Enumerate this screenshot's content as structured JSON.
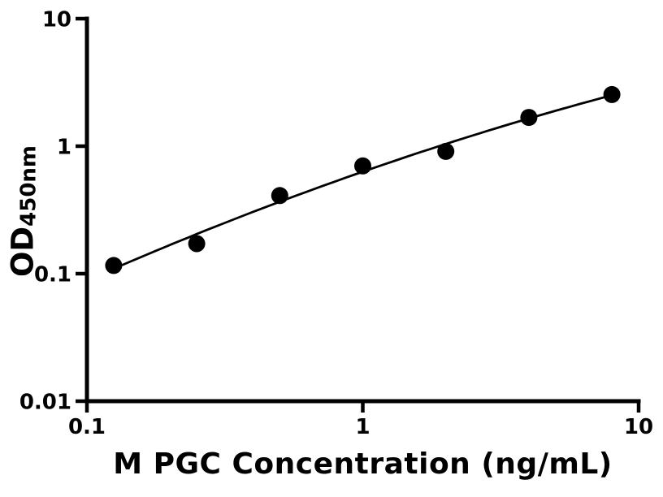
{
  "figure": {
    "background": "#ffffff",
    "foreground": "#000000"
  },
  "chart_data": {
    "type": "scatter",
    "title": "",
    "xlabel": "M PGC Concentration (ng/mL)",
    "ylabel_main": "OD",
    "ylabel_sub": "450nm",
    "x_scale": "log",
    "y_scale": "log",
    "xlim": [
      0.1,
      10
    ],
    "ylim": [
      0.01,
      10
    ],
    "grid": false,
    "legend": false,
    "x_ticks": [
      {
        "value": 0.1,
        "label": "0.1"
      },
      {
        "value": 1,
        "label": "1"
      },
      {
        "value": 10,
        "label": "10"
      }
    ],
    "y_ticks": [
      {
        "value": 0.01,
        "label": "0.01"
      },
      {
        "value": 0.1,
        "label": "0.1"
      },
      {
        "value": 1,
        "label": "1"
      },
      {
        "value": 10,
        "label": "10"
      }
    ],
    "series": [
      {
        "name": "standard-curve-points",
        "marker": "circle",
        "marker_color": "#000000",
        "x": [
          0.125,
          0.25,
          0.5,
          1,
          2,
          4,
          8
        ],
        "y": [
          0.116,
          0.172,
          0.41,
          0.7,
          0.91,
          1.68,
          2.54
        ]
      }
    ],
    "fit_curve": {
      "type": "quadratic-loglog",
      "color": "#000000",
      "x_range": [
        0.125,
        8
      ]
    }
  }
}
